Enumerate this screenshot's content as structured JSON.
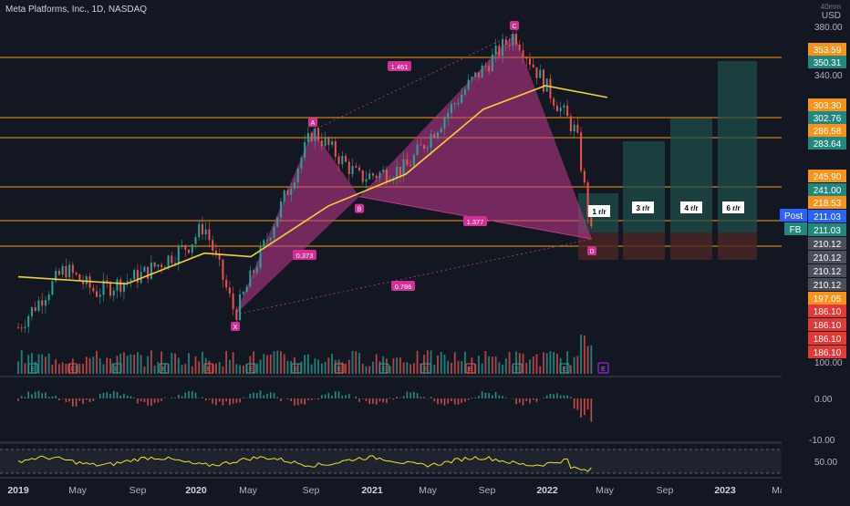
{
  "header": {
    "symbol_title": "Meta Platforms, Inc., 1D, NASDAQ",
    "currency_top": "40mm",
    "currency": "USD"
  },
  "colors": {
    "background": "#131722",
    "up": "#26a69a",
    "down": "#ef5350",
    "ma": "#f5d033",
    "harmonic_fill": "#c2388f",
    "harmonic_label": "#d42e97",
    "level_line": "#f59e0b",
    "target_box": "#1f4d4a",
    "stop_box": "#4a2626",
    "rsi": "#f5e61e",
    "badge_orange": "#f7931a",
    "badge_teal": "#22877f",
    "badge_blue": "#2962ff",
    "badge_red": "#e53935"
  },
  "chart_data": {
    "type": "candlestick",
    "title": "Meta Platforms, Inc., 1D, NASDAQ",
    "x_ticks": [
      "2019",
      "May",
      "Sep",
      "2020",
      "May",
      "Sep",
      "2021",
      "May",
      "Sep",
      "2022",
      "May",
      "Sep",
      "2023",
      "May"
    ],
    "y_ticks": [
      "380.00",
      "340.00",
      "100.00"
    ],
    "y_axis_unit": "USD",
    "price_path": [
      {
        "date": "2019-01",
        "close": 135
      },
      {
        "date": "2019-04",
        "close": 185
      },
      {
        "date": "2019-06",
        "close": 165
      },
      {
        "date": "2019-09",
        "close": 180
      },
      {
        "date": "2019-12",
        "close": 205
      },
      {
        "date": "2020-01",
        "close": 222
      },
      {
        "date": "2020-03",
        "close": 146
      },
      {
        "date": "2020-06",
        "close": 240
      },
      {
        "date": "2020-08",
        "close": 302
      },
      {
        "date": "2020-11",
        "close": 262
      },
      {
        "date": "2021-02",
        "close": 270
      },
      {
        "date": "2021-06",
        "close": 340
      },
      {
        "date": "2021-09",
        "close": 384
      },
      {
        "date": "2021-11",
        "close": 340
      },
      {
        "date": "2022-01",
        "close": 300
      },
      {
        "date": "2022-02",
        "close": 210
      }
    ],
    "moving_average": [
      {
        "date": "2019-01",
        "value": 178
      },
      {
        "date": "2019-08",
        "value": 172
      },
      {
        "date": "2020-01",
        "value": 198
      },
      {
        "date": "2020-04",
        "value": 195
      },
      {
        "date": "2020-09",
        "value": 238
      },
      {
        "date": "2021-02",
        "value": 265
      },
      {
        "date": "2021-07",
        "value": 320
      },
      {
        "date": "2021-11",
        "value": 340
      },
      {
        "date": "2022-03",
        "value": 330
      }
    ],
    "pattern_points": [
      {
        "label": "X",
        "date": "2020-03",
        "price": 146
      },
      {
        "label": "A",
        "date": "2020-08",
        "price": 302
      },
      {
        "label": "B",
        "date": "2020-11",
        "price": 246
      },
      {
        "label": "C",
        "date": "2021-09",
        "price": 384
      },
      {
        "label": "D",
        "date": "2022-02",
        "price": 210
      }
    ],
    "ratio_labels": [
      "1.461",
      "0.373",
      "1.377",
      "0.786"
    ],
    "levels": [
      "353.59",
      "303.30",
      "286.58",
      "245.90",
      "218.53",
      "210.12",
      "197.05"
    ],
    "right_badges": [
      {
        "text": "353.59",
        "color": "orange"
      },
      {
        "text": "350.31",
        "color": "teal"
      },
      {
        "text": "303.30",
        "color": "orange"
      },
      {
        "text": "302.76",
        "color": "teal"
      },
      {
        "text": "286.58",
        "color": "orange"
      },
      {
        "text": "283.64",
        "color": "teal"
      },
      {
        "text": "245.90",
        "color": "orange"
      },
      {
        "text": "241.00",
        "color": "teal"
      },
      {
        "text": "218.53",
        "color": "orange"
      },
      {
        "text": "211.03",
        "color": "blue"
      },
      {
        "text": "211.03",
        "color": "teal"
      },
      {
        "text": "210.12",
        "color": "gray"
      },
      {
        "text": "210.12",
        "color": "gray"
      },
      {
        "text": "210.12",
        "color": "gray"
      },
      {
        "text": "210.12",
        "color": "gray"
      },
      {
        "text": "197.05",
        "color": "orange"
      },
      {
        "text": "186.10",
        "color": "red"
      },
      {
        "text": "186.10",
        "color": "red"
      },
      {
        "text": "186.10",
        "color": "red"
      },
      {
        "text": "186.10",
        "color": "red"
      }
    ],
    "side_labels": [
      "Post",
      "FB"
    ],
    "rr_boxes": [
      "1 r/r",
      "3 r/r",
      "4 r/r",
      "6 r/r"
    ],
    "volume_markers": [
      "E",
      "E",
      "E",
      "E",
      "E",
      "E",
      "E",
      "E",
      "E",
      "E",
      "E",
      "E",
      "E"
    ],
    "macd_ticks": [
      "0.00",
      "-10.00"
    ],
    "rsi_ticks": [
      "50.00"
    ]
  }
}
